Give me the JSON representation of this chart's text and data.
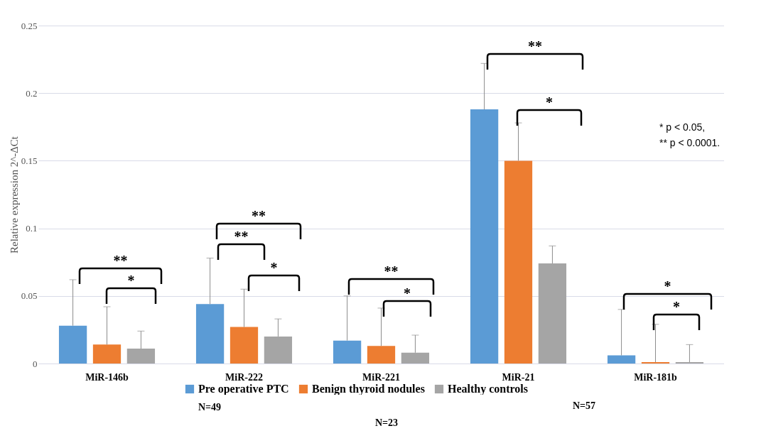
{
  "chart_data": {
    "type": "bar",
    "ylabel": "Relative expression 2^-ΔCt",
    "categories": [
      "MiR-146b",
      "MiR-222",
      "MiR-221",
      "MiR-21",
      "MiR-181b"
    ],
    "series": [
      {
        "name": "Pre operative PTC",
        "color": "#5b9bd5",
        "values": [
          0.028,
          0.044,
          0.017,
          0.188,
          0.006
        ],
        "errors": [
          [
            0.028,
            0.062
          ],
          [
            0.044,
            0.078
          ],
          [
            0.017,
            0.05
          ],
          [
            0.188,
            0.222
          ],
          [
            0.006,
            0.04
          ]
        ]
      },
      {
        "name": "Benign thyroid nodules",
        "color": "#ed7d31",
        "values": [
          0.014,
          0.027,
          0.013,
          0.15,
          0.001
        ],
        "errors": [
          [
            0.014,
            0.042
          ],
          [
            0.027,
            0.055
          ],
          [
            0.013,
            0.041
          ],
          [
            0.15,
            0.178
          ],
          [
            0.001,
            0.029
          ]
        ]
      },
      {
        "name": "Healthy controls",
        "color": "#a5a5a5",
        "values": [
          0.011,
          0.02,
          0.008,
          0.074,
          0.001
        ],
        "errors": [
          [
            0.011,
            0.024
          ],
          [
            0.02,
            0.033
          ],
          [
            0.008,
            0.021
          ],
          [
            0.074,
            0.087
          ],
          [
            0.001,
            0.014
          ]
        ]
      }
    ],
    "ylim": [
      0,
      0.25
    ],
    "yticks": [
      0,
      0.05,
      0.1,
      0.15,
      0.2,
      0.25
    ],
    "grid": "y",
    "legend": "bottom",
    "annotations": [
      "* p < 0.05,",
      "** p < 0.0001.",
      "N=49",
      "N=23",
      "N=57",
      "**",
      "*",
      "**",
      "**",
      "*",
      "**",
      "*",
      "**",
      "*",
      "*",
      "*"
    ]
  }
}
